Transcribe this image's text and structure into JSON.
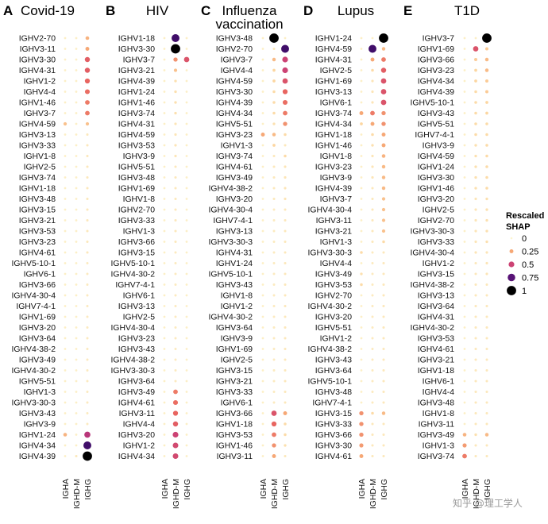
{
  "chart_data": {
    "type": "scatter",
    "subtype": "dot-matrix (bubble) plot",
    "columns": [
      "IGHA",
      "IGHD-M",
      "IGHG"
    ],
    "size_and_color_encode": "Rescaled SHAP",
    "colorscale": "magma (low = pale yellow, high = black)",
    "panels": [
      {
        "letter": "A",
        "title": [
          "Covid-19"
        ],
        "genes": [
          "IGHV2-70",
          "IGHV3-11",
          "IGHV3-30",
          "IGHV4-31",
          "IGHV1-2",
          "IGHV4-4",
          "IGHV1-46",
          "IGHV3-7",
          "IGHV4-59",
          "IGHV3-13",
          "IGHV3-33",
          "IGHV1-8",
          "IGHV2-5",
          "IGHV3-74",
          "IGHV1-18",
          "IGHV3-48",
          "IGHV3-15",
          "IGHV3-21",
          "IGHV3-53",
          "IGHV3-23",
          "IGHV4-61",
          "IGHV5-10-1",
          "IGHV6-1",
          "IGHV3-66",
          "IGHV4-30-4",
          "IGHV7-4-1",
          "IGHV1-69",
          "IGHV3-20",
          "IGHV3-64",
          "IGHV4-38-2",
          "IGHV3-49",
          "IGHV4-30-2",
          "IGHV5-51",
          "IGHV1-3",
          "IGHV3-30-3",
          "IGHV3-43",
          "IGHV3-9",
          "IGHV1-24",
          "IGHV4-34",
          "IGHV4-39"
        ],
        "values": {
          "IGHA": [
            0.02,
            0.02,
            0.02,
            0.02,
            0.02,
            0.02,
            0.02,
            0.02,
            0.18,
            0.02,
            0.02,
            0.02,
            0.02,
            0.02,
            0.02,
            0.02,
            0.02,
            0.02,
            0.02,
            0.02,
            0.02,
            0.02,
            0.02,
            0.02,
            0.02,
            0.02,
            0.02,
            0.02,
            0.02,
            0.02,
            0.02,
            0.02,
            0.02,
            0.02,
            0.02,
            0.02,
            0.02,
            0.22,
            0.02,
            0.02
          ],
          "IGHD-M": [
            0.02,
            0.02,
            0.02,
            0.02,
            0.02,
            0.02,
            0.02,
            0.02,
            0.02,
            0.02,
            0.02,
            0.02,
            0.02,
            0.02,
            0.02,
            0.02,
            0.02,
            0.02,
            0.02,
            0.02,
            0.02,
            0.02,
            0.02,
            0.02,
            0.02,
            0.02,
            0.02,
            0.02,
            0.02,
            0.02,
            0.02,
            0.02,
            0.02,
            0.02,
            0.02,
            0.02,
            0.02,
            0.02,
            0.02,
            0.05
          ],
          "IGHG": [
            0.22,
            0.25,
            0.42,
            0.42,
            0.4,
            0.38,
            0.35,
            0.35,
            0.18,
            0.05,
            0.05,
            0.05,
            0.05,
            0.05,
            0.05,
            0.05,
            0.05,
            0.05,
            0.05,
            0.05,
            0.05,
            0.04,
            0.04,
            0.04,
            0.04,
            0.04,
            0.04,
            0.04,
            0.04,
            0.04,
            0.04,
            0.04,
            0.04,
            0.04,
            0.04,
            0.04,
            0.04,
            0.55,
            0.8,
            1.0
          ]
        }
      },
      {
        "letter": "B",
        "title": [
          "HIV"
        ],
        "genes": [
          "IGHV1-18",
          "IGHV3-30",
          "IGHV3-7",
          "IGHV3-21",
          "IGHV4-39",
          "IGHV1-24",
          "IGHV1-46",
          "IGHV3-74",
          "IGHV4-31",
          "IGHV4-59",
          "IGHV3-53",
          "IGHV3-9",
          "IGHV5-51",
          "IGHV3-48",
          "IGHV1-69",
          "IGHV1-8",
          "IGHV2-70",
          "IGHV3-33",
          "IGHV1-3",
          "IGHV3-66",
          "IGHV3-15",
          "IGHV5-10-1",
          "IGHV4-30-2",
          "IGHV7-4-1",
          "IGHV6-1",
          "IGHV3-13",
          "IGHV2-5",
          "IGHV4-30-4",
          "IGHV3-23",
          "IGHV3-43",
          "IGHV4-38-2",
          "IGHV3-30-3",
          "IGHV3-64",
          "IGHV3-49",
          "IGHV4-61",
          "IGHV3-11",
          "IGHV4-4",
          "IGHV3-20",
          "IGHV1-2",
          "IGHV4-34"
        ],
        "values": {
          "IGHA": [
            0.02,
            0.02,
            0.02,
            0.02,
            0.02,
            0.02,
            0.02,
            0.02,
            0.02,
            0.02,
            0.02,
            0.02,
            0.02,
            0.02,
            0.02,
            0.02,
            0.02,
            0.02,
            0.02,
            0.02,
            0.02,
            0.02,
            0.02,
            0.02,
            0.02,
            0.02,
            0.02,
            0.02,
            0.02,
            0.02,
            0.02,
            0.02,
            0.02,
            0.02,
            0.02,
            0.02,
            0.02,
            0.02,
            0.02,
            0.02
          ],
          "IGHD-M": [
            0.8,
            1.0,
            0.3,
            0.18,
            0.08,
            0.08,
            0.08,
            0.08,
            0.06,
            0.06,
            0.06,
            0.06,
            0.05,
            0.05,
            0.05,
            0.05,
            0.05,
            0.05,
            0.05,
            0.05,
            0.04,
            0.04,
            0.04,
            0.04,
            0.04,
            0.04,
            0.04,
            0.04,
            0.04,
            0.04,
            0.04,
            0.04,
            0.04,
            0.35,
            0.38,
            0.4,
            0.42,
            0.5,
            0.48,
            0.48
          ],
          "IGHG": [
            0.02,
            0.02,
            0.45,
            0.02,
            0.02,
            0.02,
            0.02,
            0.02,
            0.02,
            0.02,
            0.02,
            0.02,
            0.02,
            0.02,
            0.02,
            0.02,
            0.02,
            0.02,
            0.02,
            0.02,
            0.02,
            0.02,
            0.02,
            0.02,
            0.02,
            0.02,
            0.02,
            0.02,
            0.02,
            0.02,
            0.02,
            0.02,
            0.02,
            0.02,
            0.02,
            0.02,
            0.02,
            0.02,
            0.02,
            0.02
          ]
        }
      },
      {
        "letter": "C",
        "title": [
          "Influenza",
          "vaccination"
        ],
        "genes": [
          "IGHV3-48",
          "IGHV2-70",
          "IGHV3-7",
          "IGHV4-4",
          "IGHV4-59",
          "IGHV3-30",
          "IGHV4-39",
          "IGHV4-34",
          "IGHV5-51",
          "IGHV3-23",
          "IGHV1-3",
          "IGHV3-74",
          "IGHV4-61",
          "IGHV3-49",
          "IGHV4-38-2",
          "IGHV3-20",
          "IGHV4-30-4",
          "IGHV7-4-1",
          "IGHV3-13",
          "IGHV3-30-3",
          "IGHV4-31",
          "IGHV1-24",
          "IGHV5-10-1",
          "IGHV3-43",
          "IGHV1-8",
          "IGHV1-2",
          "IGHV4-30-2",
          "IGHV3-64",
          "IGHV3-9",
          "IGHV1-69",
          "IGHV2-5",
          "IGHV3-15",
          "IGHV3-21",
          "IGHV3-33",
          "IGHV6-1",
          "IGHV3-66",
          "IGHV1-18",
          "IGHV3-53",
          "IGHV1-46",
          "IGHV3-11"
        ],
        "values": {
          "IGHA": [
            0.02,
            0.02,
            0.02,
            0.02,
            0.02,
            0.02,
            0.02,
            0.02,
            0.02,
            0.25,
            0.02,
            0.02,
            0.02,
            0.02,
            0.02,
            0.02,
            0.02,
            0.02,
            0.02,
            0.02,
            0.02,
            0.02,
            0.02,
            0.02,
            0.02,
            0.02,
            0.02,
            0.02,
            0.02,
            0.02,
            0.02,
            0.02,
            0.02,
            0.02,
            0.02,
            0.02,
            0.02,
            0.02,
            0.02,
            0.02
          ],
          "IGHD-M": [
            1.0,
            0.05,
            0.2,
            0.12,
            0.12,
            0.1,
            0.1,
            0.1,
            0.08,
            0.2,
            0.12,
            0.05,
            0.05,
            0.05,
            0.05,
            0.05,
            0.04,
            0.04,
            0.04,
            0.04,
            0.04,
            0.04,
            0.04,
            0.04,
            0.04,
            0.04,
            0.04,
            0.04,
            0.04,
            0.04,
            0.04,
            0.04,
            0.04,
            0.04,
            0.04,
            0.45,
            0.4,
            0.35,
            0.3,
            0.25
          ],
          "IGHG": [
            0.02,
            0.8,
            0.5,
            0.5,
            0.45,
            0.4,
            0.38,
            0.35,
            0.3,
            0.1,
            0.05,
            0.1,
            0.06,
            0.06,
            0.06,
            0.06,
            0.05,
            0.05,
            0.05,
            0.05,
            0.05,
            0.05,
            0.05,
            0.05,
            0.05,
            0.05,
            0.05,
            0.05,
            0.05,
            0.05,
            0.05,
            0.05,
            0.05,
            0.05,
            0.05,
            0.25,
            0.1,
            0.1,
            0.08,
            0.05
          ]
        }
      },
      {
        "letter": "D",
        "title": [
          "Lupus"
        ],
        "genes": [
          "IGHV1-24",
          "IGHV4-59",
          "IGHV4-31",
          "IGHV2-5",
          "IGHV1-69",
          "IGHV3-13",
          "IGHV6-1",
          "IGHV3-74",
          "IGHV4-34",
          "IGHV1-18",
          "IGHV1-46",
          "IGHV1-8",
          "IGHV3-23",
          "IGHV3-9",
          "IGHV4-39",
          "IGHV3-7",
          "IGHV4-30-4",
          "IGHV3-11",
          "IGHV3-21",
          "IGHV1-3",
          "IGHV3-30-3",
          "IGHV4-4",
          "IGHV3-49",
          "IGHV3-53",
          "IGHV2-70",
          "IGHV4-30-2",
          "IGHV3-20",
          "IGHV5-51",
          "IGHV1-2",
          "IGHV4-38-2",
          "IGHV3-43",
          "IGHV3-64",
          "IGHV5-10-1",
          "IGHV3-48",
          "IGHV7-4-1",
          "IGHV3-15",
          "IGHV3-33",
          "IGHV3-66",
          "IGHV3-30",
          "IGHV4-61"
        ],
        "values": {
          "IGHA": [
            0.02,
            0.02,
            0.02,
            0.02,
            0.02,
            0.02,
            0.02,
            0.25,
            0.12,
            0.02,
            0.02,
            0.02,
            0.02,
            0.02,
            0.02,
            0.02,
            0.02,
            0.02,
            0.02,
            0.02,
            0.1,
            0.02,
            0.08,
            0.1,
            0.02,
            0.02,
            0.02,
            0.02,
            0.02,
            0.02,
            0.02,
            0.02,
            0.02,
            0.02,
            0.02,
            0.3,
            0.3,
            0.3,
            0.28,
            0.25
          ],
          "IGHD-M": [
            0.02,
            0.8,
            0.25,
            0.1,
            0.06,
            0.06,
            0.06,
            0.35,
            0.25,
            0.1,
            0.08,
            0.06,
            0.06,
            0.06,
            0.05,
            0.05,
            0.05,
            0.05,
            0.05,
            0.05,
            0.04,
            0.04,
            0.04,
            0.04,
            0.04,
            0.04,
            0.04,
            0.04,
            0.04,
            0.04,
            0.04,
            0.04,
            0.04,
            0.04,
            0.04,
            0.1,
            0.05,
            0.05,
            0.05,
            0.05
          ],
          "IGHG": [
            1.0,
            0.2,
            0.35,
            0.42,
            0.45,
            0.45,
            0.45,
            0.3,
            0.3,
            0.25,
            0.25,
            0.22,
            0.2,
            0.2,
            0.2,
            0.18,
            0.18,
            0.18,
            0.18,
            0.1,
            0.05,
            0.05,
            0.05,
            0.05,
            0.05,
            0.05,
            0.05,
            0.05,
            0.05,
            0.05,
            0.05,
            0.05,
            0.05,
            0.05,
            0.05,
            0.2,
            0.05,
            0.05,
            0.05,
            0.05
          ]
        }
      },
      {
        "letter": "E",
        "title": [
          "T1D"
        ],
        "genes": [
          "IGHV3-7",
          "IGHV1-69",
          "IGHV3-66",
          "IGHV3-23",
          "IGHV4-34",
          "IGHV4-39",
          "IGHV5-10-1",
          "IGHV3-43",
          "IGHV5-51",
          "IGHV7-4-1",
          "IGHV3-9",
          "IGHV4-59",
          "IGHV1-24",
          "IGHV3-30",
          "IGHV1-46",
          "IGHV3-20",
          "IGHV2-5",
          "IGHV2-70",
          "IGHV3-30-3",
          "IGHV3-33",
          "IGHV4-30-4",
          "IGHV1-2",
          "IGHV3-15",
          "IGHV4-38-2",
          "IGHV3-13",
          "IGHV3-64",
          "IGHV4-31",
          "IGHV4-30-2",
          "IGHV3-53",
          "IGHV4-61",
          "IGHV3-21",
          "IGHV1-18",
          "IGHV6-1",
          "IGHV4-4",
          "IGHV3-48",
          "IGHV1-8",
          "IGHV3-11",
          "IGHV3-49",
          "IGHV1-3",
          "IGHV3-74"
        ],
        "values": {
          "IGHA": [
            0.02,
            0.02,
            0.02,
            0.02,
            0.02,
            0.02,
            0.02,
            0.02,
            0.02,
            0.02,
            0.02,
            0.02,
            0.02,
            0.02,
            0.02,
            0.02,
            0.02,
            0.02,
            0.02,
            0.02,
            0.02,
            0.02,
            0.02,
            0.02,
            0.02,
            0.02,
            0.02,
            0.02,
            0.02,
            0.02,
            0.02,
            0.02,
            0.02,
            0.02,
            0.02,
            0.02,
            0.02,
            0.22,
            0.28,
            0.35
          ],
          "IGHD-M": [
            0.02,
            0.45,
            0.15,
            0.12,
            0.12,
            0.1,
            0.1,
            0.1,
            0.1,
            0.1,
            0.08,
            0.08,
            0.08,
            0.08,
            0.08,
            0.06,
            0.06,
            0.06,
            0.06,
            0.06,
            0.06,
            0.05,
            0.05,
            0.05,
            0.05,
            0.05,
            0.05,
            0.05,
            0.05,
            0.05,
            0.05,
            0.05,
            0.05,
            0.05,
            0.05,
            0.05,
            0.05,
            0.08,
            0.05,
            0.05
          ],
          "IGHG": [
            1.0,
            0.15,
            0.2,
            0.2,
            0.15,
            0.15,
            0.12,
            0.12,
            0.1,
            0.1,
            0.1,
            0.1,
            0.1,
            0.1,
            0.1,
            0.08,
            0.08,
            0.08,
            0.08,
            0.08,
            0.06,
            0.06,
            0.06,
            0.05,
            0.05,
            0.05,
            0.05,
            0.05,
            0.05,
            0.05,
            0.05,
            0.05,
            0.05,
            0.05,
            0.05,
            0.05,
            0.05,
            0.2,
            0.05,
            0.05
          ]
        }
      }
    ],
    "legend": {
      "title": [
        "Rescaled",
        "SHAP"
      ],
      "placement": "right",
      "entries": [
        {
          "label": "0",
          "value": 0
        },
        {
          "label": "0.25",
          "value": 0.25
        },
        {
          "label": "0.5",
          "value": 0.5
        },
        {
          "label": "0.75",
          "value": 0.75
        },
        {
          "label": "1",
          "value": 1
        }
      ]
    }
  },
  "watermark": "知乎 @理工学人"
}
